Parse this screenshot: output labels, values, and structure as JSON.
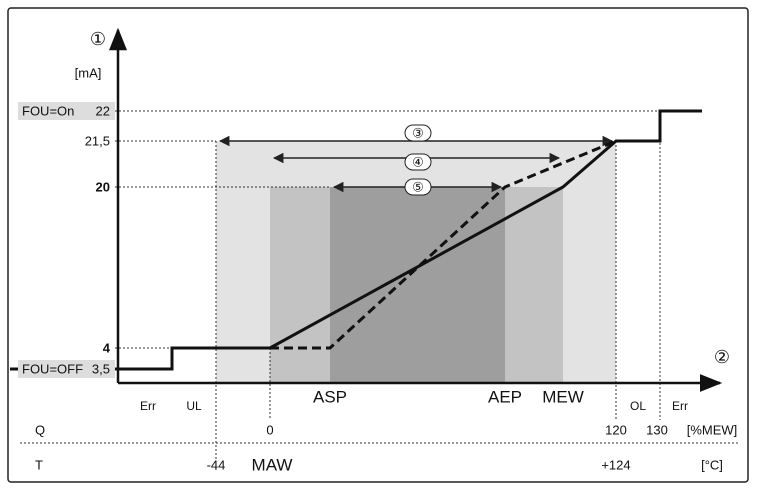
{
  "axes": {
    "y_marker": "①",
    "y_unit": "[mA]",
    "x_marker": "②"
  },
  "y_levels": [
    {
      "name": "FOU=On",
      "value": "22"
    },
    {
      "value": "21,5"
    },
    {
      "value": "20"
    },
    {
      "value": "4"
    },
    {
      "name": "FOU=OFF",
      "value": "3,5"
    }
  ],
  "ranges": [
    "③",
    "④",
    "⑤"
  ],
  "zones": {
    "err_low": "Err",
    "ul": "UL",
    "ol": "OL",
    "err_high": "Err"
  },
  "points": {
    "asp": "ASP",
    "aep": "AEP",
    "mew": "MEW",
    "maw": "MAW"
  },
  "rows": {
    "q": {
      "label": "Q",
      "values": [
        "0",
        "120",
        "130"
      ],
      "unit": "[%MEW]"
    },
    "t": {
      "label": "T",
      "values": [
        "-44",
        "+124"
      ],
      "unit": "[°C]"
    }
  }
}
